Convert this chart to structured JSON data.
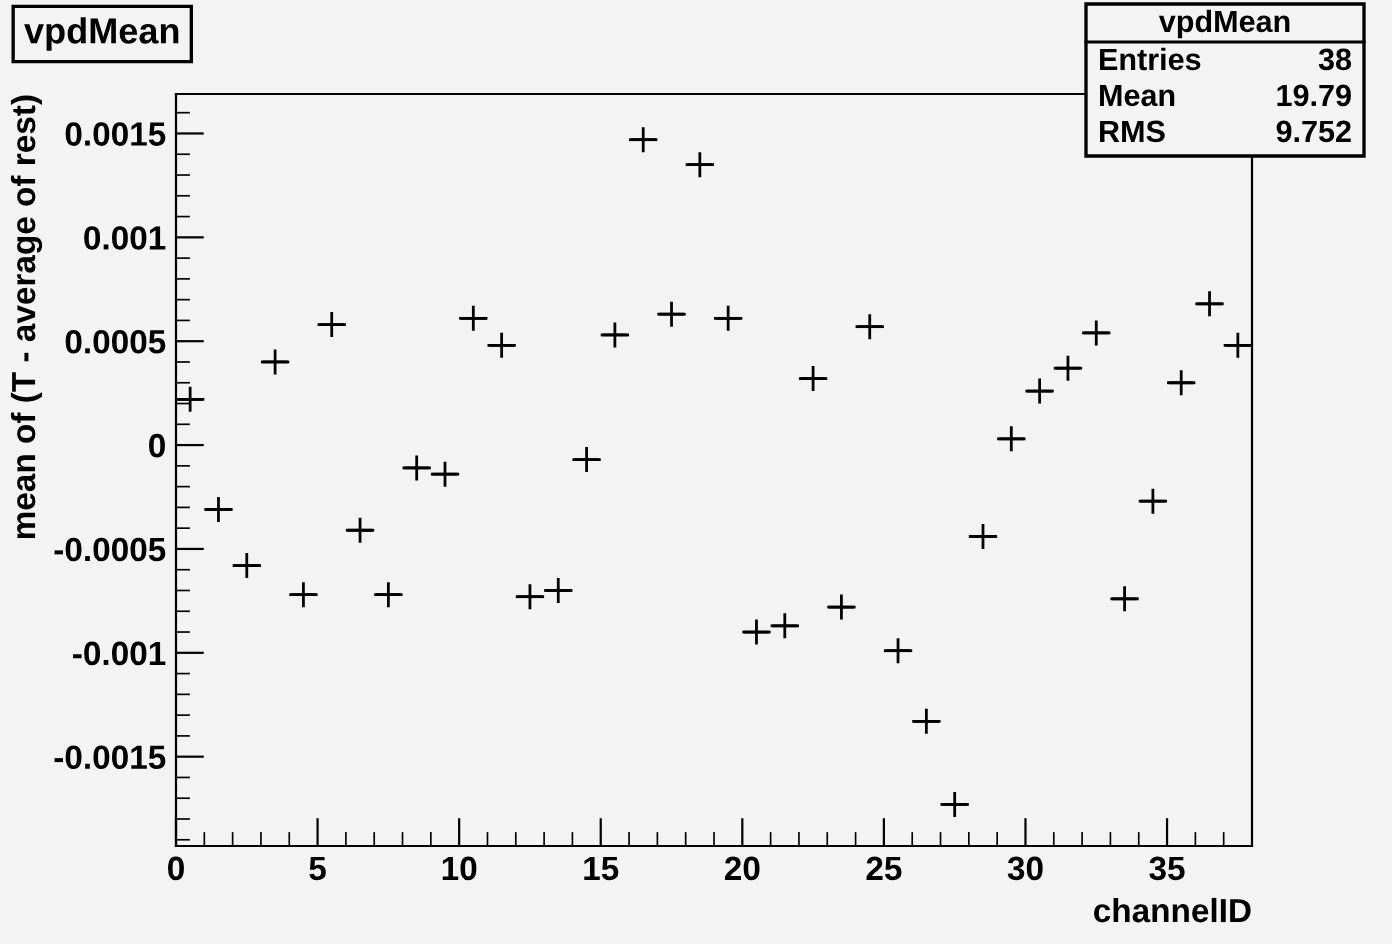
{
  "chart_data": {
    "type": "scatter",
    "title": "vpdMean",
    "xlabel": "channelID",
    "ylabel": "mean of (T - average of rest)",
    "x": [
      0.5,
      1.5,
      2.5,
      3.5,
      4.5,
      5.5,
      6.5,
      7.5,
      8.5,
      9.5,
      10.5,
      11.5,
      12.5,
      13.5,
      14.5,
      15.5,
      16.5,
      17.5,
      18.5,
      19.5,
      20.5,
      21.5,
      22.5,
      23.5,
      24.5,
      25.5,
      26.5,
      27.5,
      28.5,
      29.5,
      30.5,
      31.5,
      32.5,
      33.5,
      34.5,
      35.5,
      36.5,
      37.5
    ],
    "series": [
      {
        "color": "#000000",
        "values": [
          0.00022,
          -0.00031,
          -0.00058,
          0.0004,
          -0.00072,
          0.00058,
          -0.00041,
          -0.00072,
          -0.00011,
          -0.00014,
          0.00061,
          0.00048,
          -0.00073,
          -0.0007,
          -7e-05,
          0.00053,
          0.00147,
          0.00063,
          0.00135,
          0.00061,
          -0.0009,
          -0.00087,
          0.00032,
          -0.00078,
          0.00057,
          -0.00099,
          -0.00133,
          -0.00173,
          -0.00044,
          3e-05,
          0.00026,
          0.00037,
          0.00054,
          -0.00074,
          -0.00027,
          0.0003,
          0.00068,
          0.00048
        ],
        "xerrors": [
          0.5,
          0.5,
          0.5,
          0.5,
          0.5,
          0.5,
          0.5,
          0.5,
          0.5,
          0.5,
          0.5,
          0.5,
          0.5,
          0.5,
          0.5,
          0.5,
          0.5,
          0.5,
          0.5,
          0.5,
          0.5,
          0.5,
          0.5,
          0.5,
          0.5,
          0.5,
          0.5,
          0.5,
          0.5,
          0.5,
          0.5,
          0.5,
          0.5,
          0.5,
          0.5,
          0.5,
          0.5,
          0.5
        ]
      }
    ],
    "marker": "cross",
    "grid": false,
    "legend": false,
    "xlim": [
      0,
      38
    ],
    "xticks": [
      0,
      5,
      10,
      15,
      20,
      25,
      30,
      35
    ],
    "ylim": [
      -0.00193,
      0.00169
    ],
    "yticks": [
      -0.0015,
      -0.001,
      -0.0005,
      0,
      0.0005,
      0.001,
      0.0015
    ],
    "annotations": [
      "vpdMean",
      "Entries",
      "38",
      "Mean",
      "19.79",
      "RMS",
      "9.752"
    ]
  }
}
